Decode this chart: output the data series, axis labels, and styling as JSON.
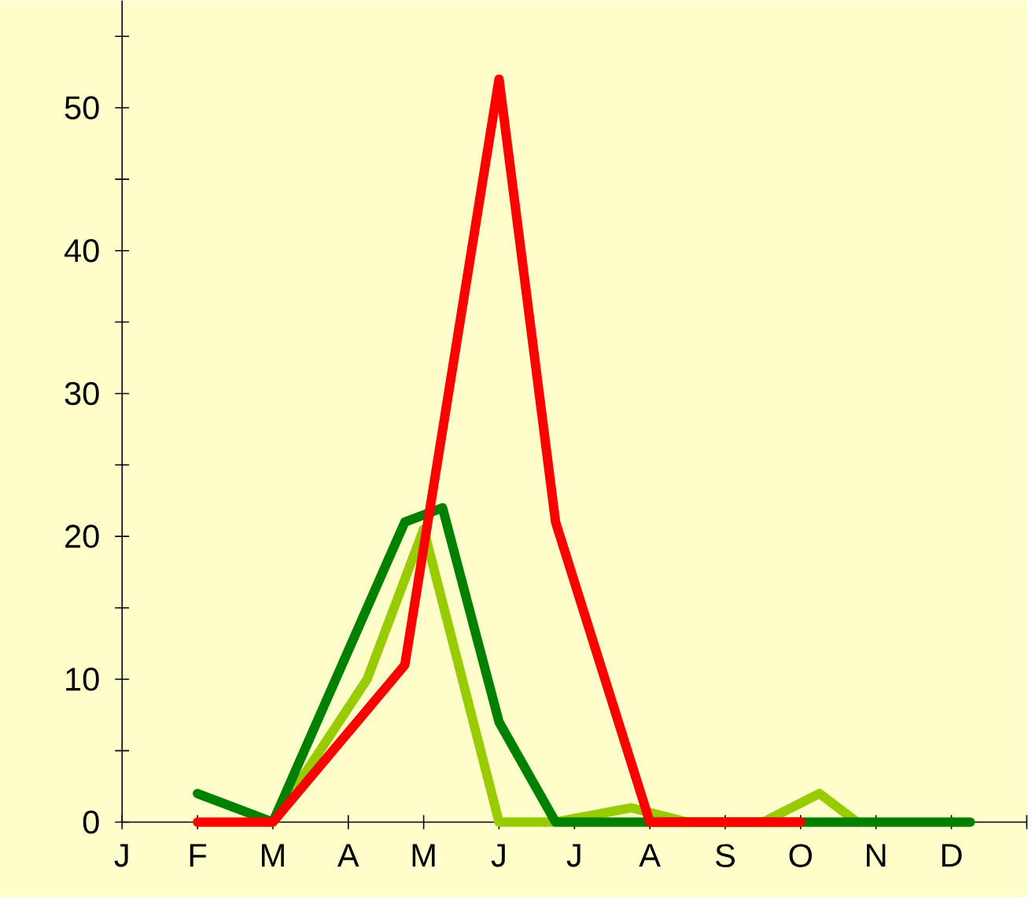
{
  "chart_data": {
    "type": "line",
    "ylim": [
      0,
      57.5
    ],
    "categories": [
      "J",
      null,
      null,
      null,
      "F",
      null,
      null,
      null,
      "M",
      null,
      null,
      null,
      "A",
      null,
      null,
      null,
      "M",
      null,
      null,
      null,
      "J",
      null,
      null,
      null,
      "J",
      null,
      null,
      null,
      "A",
      null,
      null,
      null,
      "S",
      null,
      null,
      null,
      "O",
      null,
      null,
      null,
      "N",
      null,
      null,
      null,
      "D",
      null,
      null,
      null
    ],
    "yticks": [
      0,
      {
        "value": 5,
        "label": null
      },
      10,
      {
        "value": 15,
        "label": null
      },
      20,
      {
        "value": 25,
        "label": null
      },
      30,
      {
        "value": 35,
        "label": null
      },
      40,
      {
        "value": 45,
        "label": null
      },
      50,
      {
        "value": 55,
        "label": null
      }
    ],
    "series": [
      {
        "color": "#99cc00",
        "values": [
          null,
          null,
          null,
          null,
          null,
          null,
          null,
          null,
          0,
          null,
          null,
          null,
          null,
          10,
          null,
          null,
          20.5,
          null,
          null,
          null,
          0,
          null,
          null,
          0,
          null,
          null,
          null,
          1,
          null,
          null,
          0,
          null,
          null,
          null,
          0,
          null,
          null,
          2,
          null,
          0,
          null,
          null,
          null,
          null,
          null,
          null,
          null,
          null
        ]
      },
      {
        "color": "#008000",
        "values": [
          null,
          null,
          null,
          null,
          2,
          null,
          null,
          null,
          0,
          null,
          null,
          null,
          null,
          null,
          null,
          21,
          null,
          22,
          null,
          null,
          7,
          null,
          null,
          0,
          null,
          null,
          null,
          null,
          null,
          null,
          null,
          null,
          null,
          null,
          null,
          null,
          null,
          null,
          null,
          null,
          null,
          null,
          null,
          null,
          null,
          0,
          null,
          null
        ]
      },
      {
        "color": "#ff0000",
        "values": [
          null,
          null,
          null,
          null,
          0,
          null,
          null,
          null,
          0,
          null,
          null,
          null,
          null,
          null,
          null,
          11,
          null,
          null,
          null,
          null,
          52,
          null,
          null,
          21,
          null,
          null,
          null,
          null,
          0,
          null,
          null,
          null,
          null,
          null,
          null,
          null,
          0,
          null,
          null,
          null,
          null,
          null,
          null,
          null,
          null,
          null,
          null,
          null
        ]
      }
    ]
  }
}
